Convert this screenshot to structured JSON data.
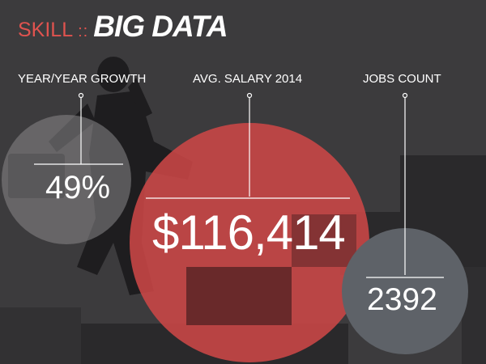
{
  "header": {
    "skill_label": "SKILL",
    "separator": "::",
    "topic": "BIG DATA"
  },
  "stats": [
    {
      "label": "YEAR/YEAR GROWTH",
      "value": "49%"
    },
    {
      "label": "AVG. SALARY 2014",
      "value": "$116,414"
    },
    {
      "label": "JOBS COUNT",
      "value": "2392"
    }
  ],
  "colors": {
    "background": "#3c3b3d",
    "accent_red": "#e0534f",
    "salary_circle": "#c84545",
    "jobs_circle": "#5e6268",
    "growth_circle": "#8a898b",
    "text": "#ffffff"
  },
  "illustration": "businessman-running-up-stairs"
}
